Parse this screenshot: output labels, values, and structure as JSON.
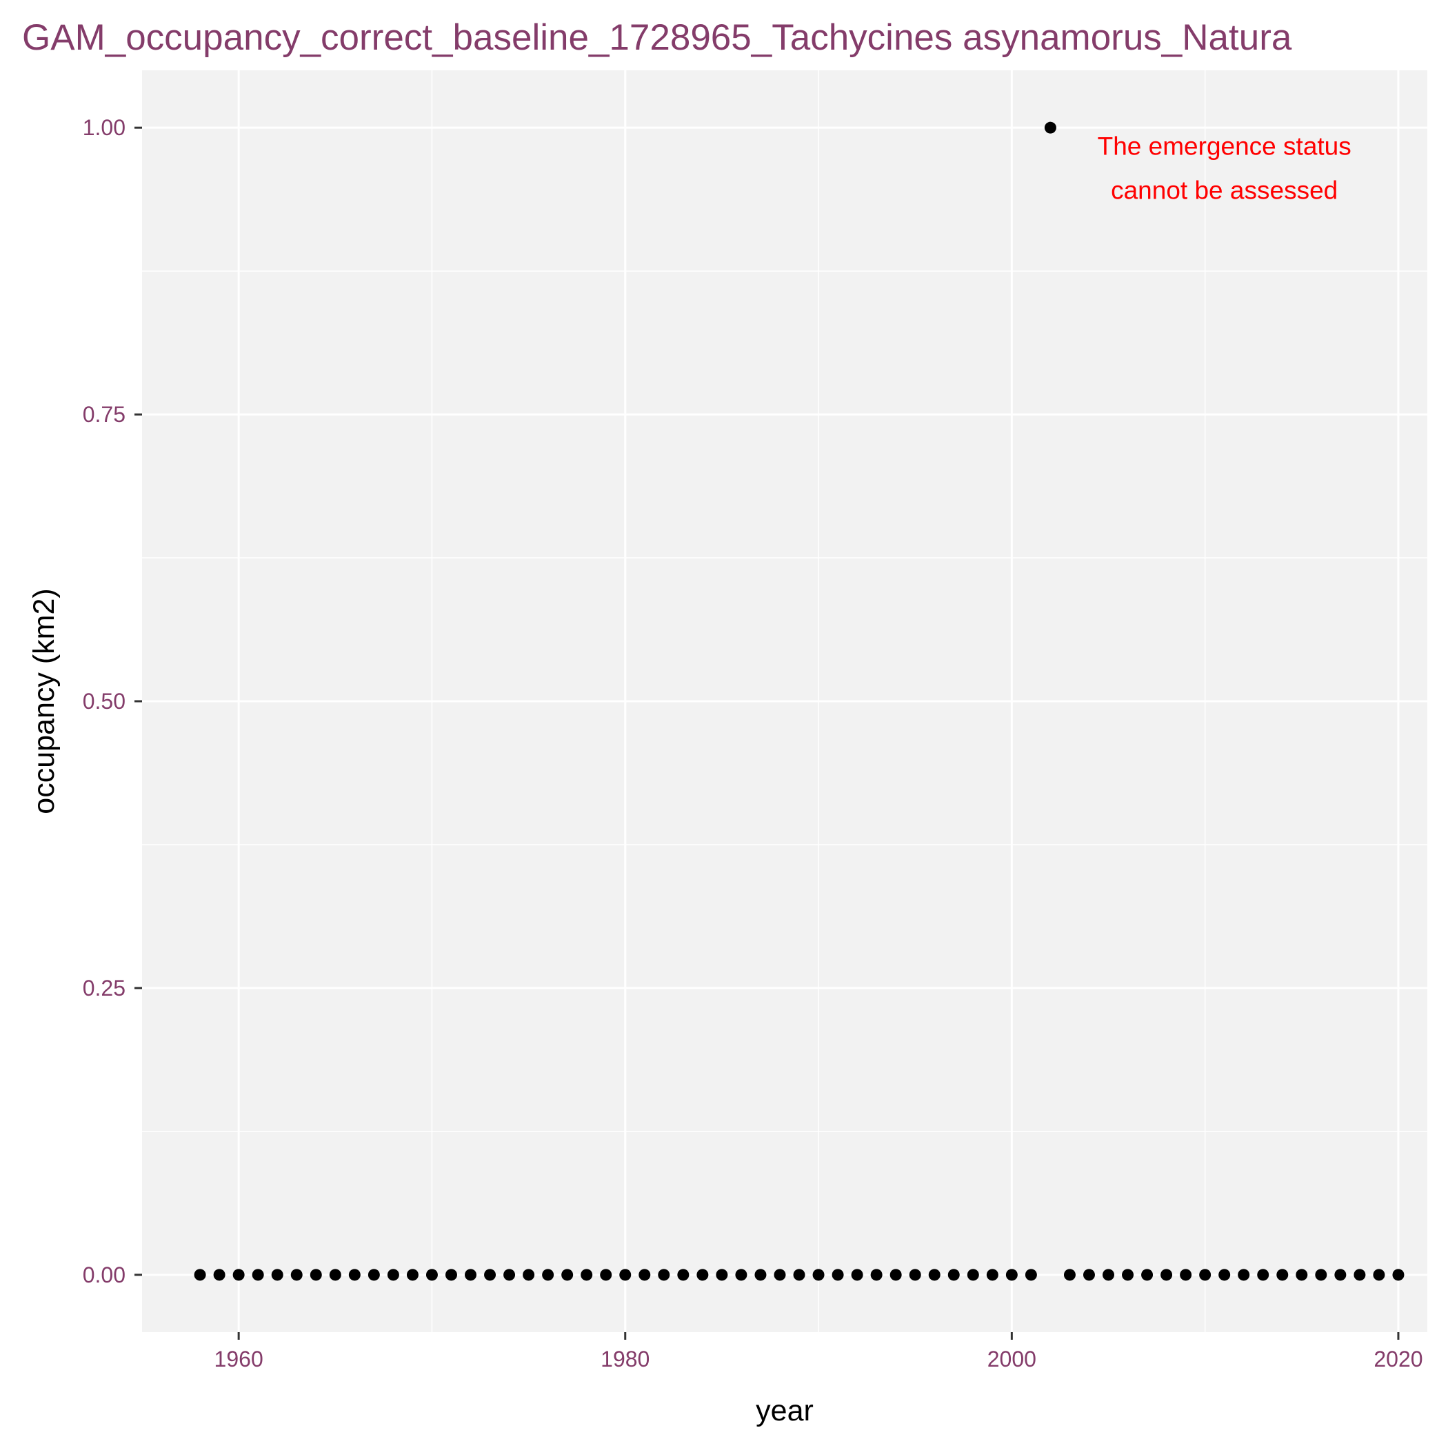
{
  "chart_data": {
    "type": "scatter",
    "title": "GAM_occupancy_correct_baseline_1728965_Tachycines asynamorus_Natura",
    "xlabel": "year",
    "ylabel": "occupancy (km2)",
    "xlim": [
      1955,
      2021.5
    ],
    "ylim": [
      -0.05,
      1.05
    ],
    "x_ticks": [
      1960,
      1980,
      2000,
      2020
    ],
    "x_tick_labels": [
      "1960",
      "1980",
      "2000",
      "2020"
    ],
    "y_ticks": [
      0,
      0.25,
      0.5,
      0.75,
      1
    ],
    "y_tick_labels": [
      "0.00",
      "0.25",
      "0.50",
      "0.75",
      "1.00"
    ],
    "grid": true,
    "legend": "none",
    "colors": {
      "panel_background": "#f2f2f2",
      "grid": "#ffffff",
      "point": "#000000",
      "title": "#843c6a",
      "tick_label": "#843c6a",
      "annotation": "#ff0000"
    },
    "series": [
      {
        "x": [
          1958,
          1959,
          1960,
          1961,
          1962,
          1963,
          1964,
          1965,
          1966,
          1967,
          1968,
          1969,
          1970,
          1971,
          1972,
          1973,
          1974,
          1975,
          1976,
          1977,
          1978,
          1979,
          1980,
          1981,
          1982,
          1983,
          1984,
          1985,
          1986,
          1987,
          1988,
          1989,
          1990,
          1991,
          1992,
          1993,
          1994,
          1995,
          1996,
          1997,
          1998,
          1999,
          2000,
          2001,
          2002,
          2003,
          2004,
          2005,
          2006,
          2007,
          2008,
          2009,
          2010,
          2011,
          2012,
          2013,
          2014,
          2015,
          2016,
          2017,
          2018,
          2019,
          2020
        ],
        "y": [
          0,
          0,
          0,
          0,
          0,
          0,
          0,
          0,
          0,
          0,
          0,
          0,
          0,
          0,
          0,
          0,
          0,
          0,
          0,
          0,
          0,
          0,
          0,
          0,
          0,
          0,
          0,
          0,
          0,
          0,
          0,
          0,
          0,
          0,
          0,
          0,
          0,
          0,
          0,
          0,
          0,
          0,
          0,
          0,
          1,
          0,
          0,
          0,
          0,
          0,
          0,
          0,
          0,
          0,
          0,
          0,
          0,
          0,
          0,
          0,
          0,
          0,
          0
        ]
      }
    ],
    "annotations": [
      {
        "lines": [
          "The emergence status",
          "cannot be assessed"
        ],
        "x": 2011,
        "y": 0.965
      }
    ]
  }
}
